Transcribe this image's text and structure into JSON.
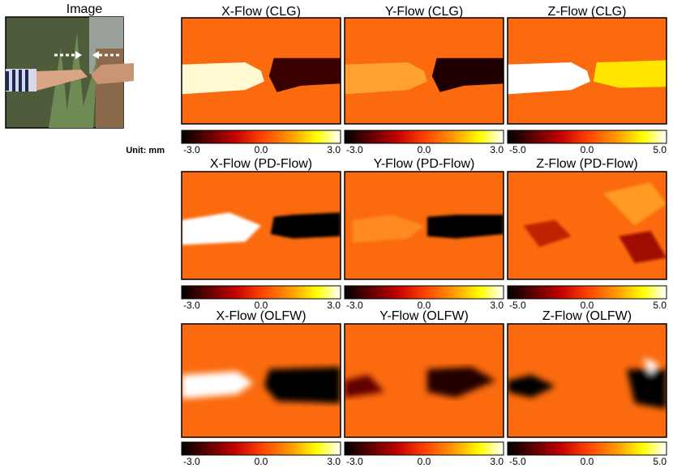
{
  "image": {
    "title": "Image"
  },
  "unit": "Unit: mm",
  "rows": [
    {
      "panels": [
        {
          "title": "X-Flow (CLG)",
          "ticks": [
            "-3.0",
            "0.0",
            "3.0"
          ]
        },
        {
          "title": "Y-Flow (CLG)",
          "ticks": [
            "-3.0",
            "0.0",
            "3.0"
          ]
        },
        {
          "title": "Z-Flow (CLG)",
          "ticks": [
            "-5.0",
            "0.0",
            "5.0"
          ]
        }
      ]
    },
    {
      "panels": [
        {
          "title": "X-Flow (PD-Flow)",
          "ticks": [
            "-3.0",
            "0.0",
            "3.0"
          ]
        },
        {
          "title": "Y-Flow (PD-Flow)",
          "ticks": [
            "-3.0",
            "0.0",
            "3.0"
          ]
        },
        {
          "title": "Z-Flow (PD-Flow)",
          "ticks": [
            "-5.0",
            "0.0",
            "5.0"
          ]
        }
      ]
    },
    {
      "panels": [
        {
          "title": "X-Flow (OLFW)",
          "ticks": [
            "-3.0",
            "0.0",
            "3.0"
          ]
        },
        {
          "title": "Y-Flow (OLFW)",
          "ticks": [
            "-3.0",
            "0.0",
            "3.0"
          ]
        },
        {
          "title": "Z-Flow (OLFW)",
          "ticks": [
            "-5.0",
            "0.0",
            "5.0"
          ]
        }
      ]
    }
  ]
}
